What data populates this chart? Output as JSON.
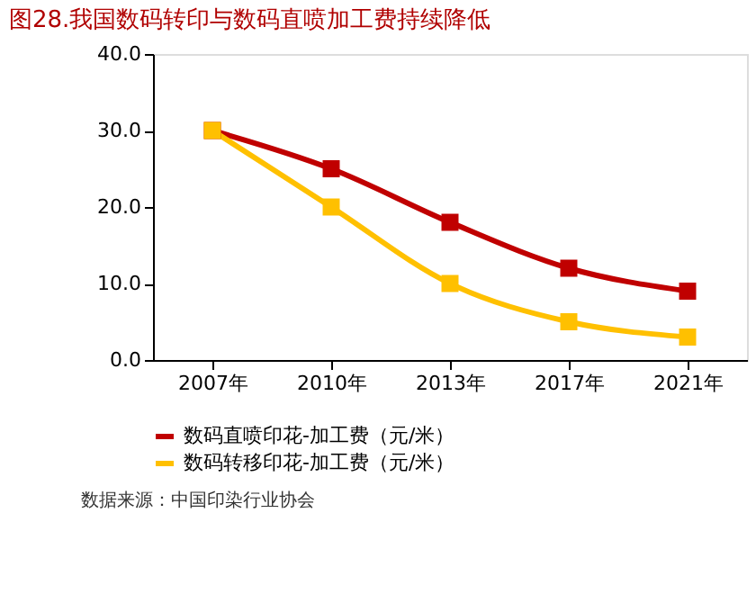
{
  "chart_data": {
    "type": "line",
    "title": "图28.我国数码转印与数码直喷加工费持续降低",
    "categories": [
      "2007年",
      "2010年",
      "2013年",
      "2017年",
      "2021年"
    ],
    "series": [
      {
        "name": "数码直喷印花-加工费（元/米）",
        "color": "#c00000",
        "values": [
          30,
          25,
          18,
          12,
          9
        ]
      },
      {
        "name": "数码转移印花-加工费（元/米）",
        "color": "#ffc000",
        "values": [
          30,
          20,
          10,
          5,
          3
        ]
      }
    ],
    "ylim": [
      0,
      40
    ],
    "yticks": [
      {
        "value": 0,
        "label": "0.0"
      },
      {
        "value": 10,
        "label": "10.0"
      },
      {
        "value": 20,
        "label": "20.0"
      },
      {
        "value": 30,
        "label": "30.0"
      },
      {
        "value": 40,
        "label": "40.0"
      }
    ],
    "grid": false,
    "legend": "bottom",
    "marker": "square",
    "line_style": "solid",
    "annotations": [
      "数据来源：中国印染行业协会"
    ]
  }
}
